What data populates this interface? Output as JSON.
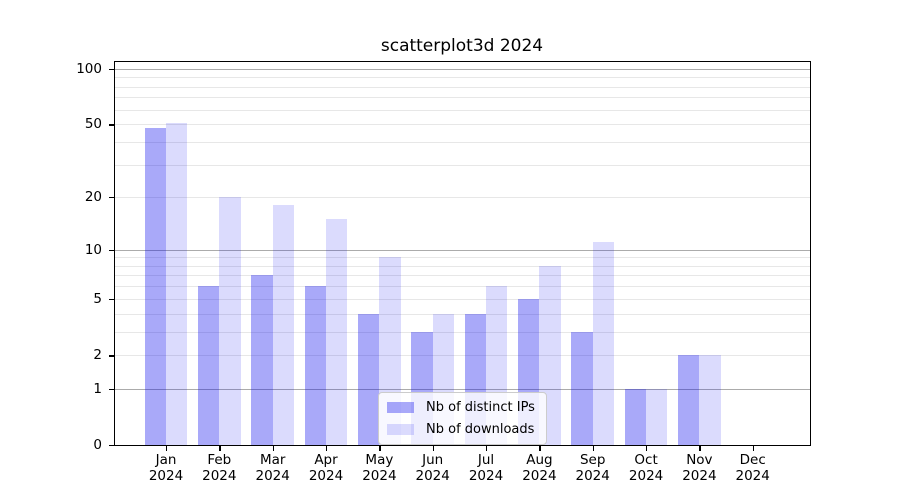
{
  "chart_data": {
    "type": "bar",
    "title": "scatterplot3d 2024",
    "categories": [
      "Jan",
      "Feb",
      "Mar",
      "Apr",
      "May",
      "Jun",
      "Jul",
      "Aug",
      "Sep",
      "Oct",
      "Nov",
      "Dec"
    ],
    "year_label": "2024",
    "series": [
      {
        "name": "Nb of distinct IPs",
        "color": "rgba(8,8,238,0.35)",
        "values": [
          48,
          6,
          7,
          6,
          4,
          3,
          4,
          5,
          3,
          1,
          2,
          0
        ]
      },
      {
        "name": "Nb of downloads",
        "color": "rgba(8,8,238,0.145)",
        "values": [
          51,
          20,
          18,
          15,
          9,
          4,
          6,
          8,
          11,
          1,
          2,
          0
        ]
      }
    ],
    "y_axis": {
      "scale": "log1p",
      "tick_values": [
        0,
        1,
        2,
        5,
        10,
        20,
        50,
        100
      ],
      "major_gridlines": [
        1,
        10,
        100
      ],
      "minor_gridlines": [
        2,
        3,
        4,
        5,
        6,
        7,
        8,
        9,
        20,
        30,
        40,
        50,
        60,
        70,
        80,
        90
      ],
      "max": 110
    },
    "legend_position": "lower center",
    "grid": true,
    "colors": {
      "grid_major": "#ababab",
      "grid_minor": "#e7e7e7",
      "spine": "#000000"
    }
  }
}
